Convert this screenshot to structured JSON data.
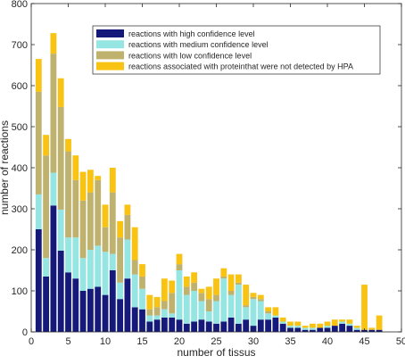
{
  "chart_data": {
    "type": "bar",
    "stacked": true,
    "xlabel": "number of tissus",
    "ylabel": "number of reactions",
    "xlim": [
      0,
      50
    ],
    "ylim": [
      0,
      800
    ],
    "xticks": [
      0,
      5,
      10,
      15,
      20,
      25,
      30,
      35,
      40,
      45,
      50
    ],
    "yticks": [
      0,
      100,
      200,
      300,
      400,
      500,
      600,
      700,
      800
    ],
    "grid": false,
    "legend_position": "top-right",
    "x": [
      1,
      2,
      3,
      4,
      5,
      6,
      7,
      8,
      9,
      10,
      11,
      12,
      13,
      14,
      15,
      16,
      17,
      18,
      19,
      20,
      21,
      22,
      23,
      24,
      25,
      26,
      27,
      28,
      29,
      30,
      31,
      32,
      33,
      34,
      35,
      36,
      37,
      38,
      39,
      40,
      41,
      42,
      43,
      44,
      45,
      46,
      47
    ],
    "series": [
      {
        "name": "reactions with high confidence level",
        "color": "#14197a",
        "values": [
          250,
          135,
          308,
          198,
          145,
          130,
          100,
          105,
          110,
          90,
          150,
          80,
          130,
          60,
          55,
          25,
          30,
          35,
          35,
          30,
          20,
          25,
          30,
          25,
          20,
          25,
          35,
          20,
          30,
          15,
          30,
          30,
          35,
          20,
          10,
          10,
          5,
          5,
          10,
          10,
          15,
          20,
          15,
          5,
          5,
          5,
          5
        ]
      },
      {
        "name": "reactions with medium confidence level",
        "color": "#95e6e3",
        "values": [
          85,
          45,
          80,
          100,
          85,
          100,
          80,
          95,
          100,
          105,
          40,
          40,
          95,
          80,
          50,
          15,
          10,
          20,
          10,
          120,
          70,
          75,
          45,
          25,
          55,
          105,
          55,
          95,
          30,
          65,
          45,
          15,
          5,
          5,
          5,
          5,
          5,
          5,
          0,
          5,
          0,
          5,
          5,
          5,
          0,
          0,
          0
        ]
      },
      {
        "name": "reactions with low confidence level",
        "color": "#bfb26e",
        "values": [
          250,
          250,
          290,
          250,
          210,
          140,
          140,
          140,
          160,
          60,
          150,
          110,
          60,
          35,
          30,
          15,
          20,
          20,
          50,
          15,
          20,
          20,
          20,
          30,
          15,
          5,
          10,
          5,
          5,
          5,
          5,
          5,
          0,
          0,
          0,
          0,
          0,
          0,
          0,
          0,
          0,
          0,
          0,
          0,
          0,
          0,
          0
        ]
      },
      {
        "name": "reactions associated with  proteinthat were not detected by HPA",
        "color": "#f8c312",
        "values": [
          80,
          50,
          50,
          70,
          30,
          60,
          70,
          55,
          10,
          55,
          60,
          40,
          25,
          80,
          30,
          35,
          25,
          55,
          30,
          25,
          25,
          25,
          10,
          30,
          40,
          20,
          40,
          20,
          50,
          10,
          10,
          10,
          20,
          10,
          10,
          10,
          5,
          10,
          10,
          10,
          15,
          5,
          10,
          5,
          110,
          5,
          35
        ]
      }
    ]
  }
}
